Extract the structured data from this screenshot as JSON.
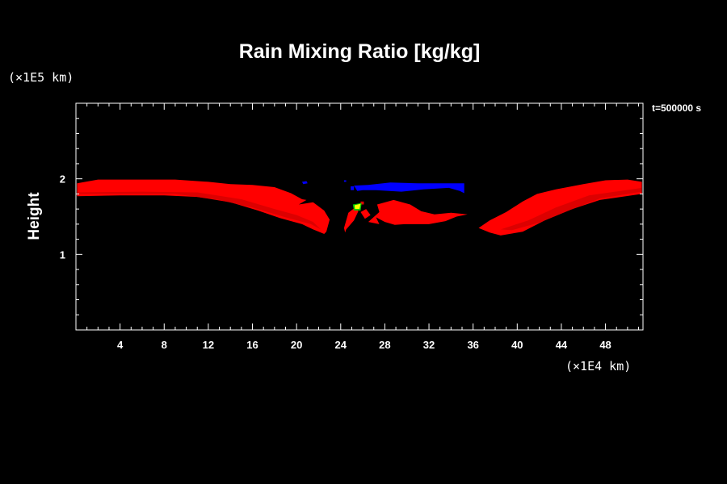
{
  "chart_data": {
    "type": "heatmap",
    "title": "Rain Mixing Ratio [kg/kg]",
    "xlabel": "",
    "ylabel": "Height",
    "x_unit": "(×1E4 km)",
    "y_unit": "(×1E5 km)",
    "time_label": "t=500000 s",
    "xlim": [
      0,
      51.4
    ],
    "ylim": [
      0,
      3.0
    ],
    "x_ticks": [
      4,
      8,
      12,
      16,
      20,
      24,
      28,
      32,
      36,
      40,
      44,
      48
    ],
    "y_ticks": [
      1,
      2
    ],
    "grid": false,
    "colors": {
      "background": "#000000",
      "axes": "#ffffff",
      "red": "#ff0000",
      "dark_red": "#dc0000",
      "blue": "#0000ff",
      "yellow": "#ffff00",
      "green": "#00c800"
    },
    "regions": [
      {
        "color": "red",
        "polygon": [
          [
            0.1,
            1.77
          ],
          [
            0.1,
            1.94
          ],
          [
            2,
            1.99
          ],
          [
            6,
            1.99
          ],
          [
            9,
            1.99
          ],
          [
            12,
            1.96
          ],
          [
            14,
            1.93
          ],
          [
            16,
            1.92
          ],
          [
            18,
            1.89
          ],
          [
            19.5,
            1.81
          ],
          [
            20.5,
            1.73
          ],
          [
            20.9,
            1.72
          ],
          [
            20.2,
            1.66
          ],
          [
            21.5,
            1.69
          ],
          [
            22.5,
            1.58
          ],
          [
            23,
            1.46
          ],
          [
            22.7,
            1.3
          ],
          [
            22.5,
            1.27
          ],
          [
            21.5,
            1.33
          ],
          [
            20.5,
            1.4
          ],
          [
            18.5,
            1.48
          ],
          [
            16.5,
            1.58
          ],
          [
            14,
            1.69
          ],
          [
            11,
            1.76
          ],
          [
            8,
            1.78
          ],
          [
            4,
            1.78
          ]
        ]
      },
      {
        "color": "red",
        "polygon": [
          [
            24.7,
            1.55
          ],
          [
            25.3,
            1.62
          ],
          [
            25.6,
            1.57
          ],
          [
            25.2,
            1.45
          ],
          [
            24.5,
            1.33
          ],
          [
            24.4,
            1.29
          ],
          [
            24.3,
            1.35
          ]
        ]
      },
      {
        "color": "red",
        "polygon": [
          [
            25.8,
            1.56
          ],
          [
            26.2,
            1.47
          ],
          [
            26.7,
            1.52
          ],
          [
            26.3,
            1.6
          ]
        ]
      },
      {
        "color": "red",
        "polygon": [
          [
            27.3,
            1.66
          ],
          [
            28.8,
            1.72
          ],
          [
            30.3,
            1.66
          ],
          [
            31.3,
            1.57
          ],
          [
            32.5,
            1.53
          ],
          [
            34,
            1.55
          ],
          [
            35.5,
            1.53
          ],
          [
            34.5,
            1.5
          ],
          [
            33.5,
            1.44
          ],
          [
            32,
            1.4
          ],
          [
            29.8,
            1.4
          ],
          [
            28.9,
            1.39
          ],
          [
            28,
            1.43
          ],
          [
            27.2,
            1.49
          ],
          [
            27.5,
            1.4
          ],
          [
            26.5,
            1.43
          ],
          [
            27.5,
            1.56
          ]
        ]
      },
      {
        "color": "red",
        "polygon": [
          [
            37.5,
            1.29
          ],
          [
            38.5,
            1.25
          ],
          [
            40.5,
            1.3
          ],
          [
            42.5,
            1.45
          ],
          [
            45,
            1.6
          ],
          [
            47.5,
            1.72
          ],
          [
            51.3,
            1.8
          ],
          [
            51.3,
            1.96
          ],
          [
            50,
            1.99
          ],
          [
            48,
            1.98
          ],
          [
            46,
            1.93
          ],
          [
            43.5,
            1.86
          ],
          [
            41.8,
            1.8
          ],
          [
            40.5,
            1.7
          ],
          [
            39,
            1.56
          ],
          [
            37.5,
            1.45
          ],
          [
            36.5,
            1.35
          ]
        ]
      },
      {
        "color": "dark_red",
        "polygon": [
          [
            0.1,
            1.82
          ],
          [
            6,
            1.83
          ],
          [
            11,
            1.82
          ],
          [
            15,
            1.73
          ],
          [
            18,
            1.6
          ],
          [
            20,
            1.52
          ],
          [
            21.5,
            1.43
          ],
          [
            22.2,
            1.33
          ],
          [
            21.3,
            1.4
          ],
          [
            19,
            1.49
          ],
          [
            16,
            1.62
          ],
          [
            13,
            1.72
          ],
          [
            9,
            1.8
          ],
          [
            0.1,
            1.8
          ]
        ]
      },
      {
        "color": "dark_red",
        "polygon": [
          [
            38.5,
            1.33
          ],
          [
            41,
            1.45
          ],
          [
            43.5,
            1.62
          ],
          [
            46.5,
            1.78
          ],
          [
            51.3,
            1.88
          ],
          [
            51.3,
            1.83
          ],
          [
            47.5,
            1.74
          ],
          [
            44.5,
            1.57
          ],
          [
            42,
            1.42
          ],
          [
            39.5,
            1.32
          ]
        ]
      },
      {
        "color": "blue",
        "polygon": [
          [
            25.2,
            1.91
          ],
          [
            26.5,
            1.92
          ],
          [
            28.5,
            1.95
          ],
          [
            31,
            1.94
          ],
          [
            33.5,
            1.94
          ],
          [
            35.2,
            1.94
          ],
          [
            35.2,
            1.81
          ],
          [
            34.8,
            1.84
          ],
          [
            33.8,
            1.88
          ],
          [
            31.5,
            1.86
          ],
          [
            29.5,
            1.83
          ],
          [
            27.2,
            1.85
          ],
          [
            26,
            1.85
          ],
          [
            25.5,
            1.84
          ]
        ]
      },
      {
        "color": "blue",
        "polygon": [
          [
            20.5,
            1.96
          ],
          [
            20.9,
            1.97
          ],
          [
            21,
            1.94
          ],
          [
            20.6,
            1.93
          ]
        ]
      },
      {
        "color": "blue",
        "polygon": [
          [
            24.3,
            1.98
          ],
          [
            24.5,
            1.98
          ],
          [
            24.5,
            1.96
          ],
          [
            24.3,
            1.96
          ]
        ]
      },
      {
        "color": "blue",
        "polygon": [
          [
            24.9,
            1.9
          ],
          [
            25.2,
            1.9
          ],
          [
            25.2,
            1.85
          ],
          [
            24.9,
            1.85
          ]
        ]
      },
      {
        "color": "dark_red",
        "polygon": [
          [
            25.8,
            1.7
          ],
          [
            26.1,
            1.7
          ],
          [
            26.1,
            1.66
          ],
          [
            25.8,
            1.66
          ]
        ]
      },
      {
        "color": "green",
        "polygon": [
          [
            25.1,
            1.66
          ],
          [
            25.9,
            1.68
          ],
          [
            25.8,
            1.58
          ],
          [
            25.2,
            1.58
          ]
        ]
      },
      {
        "color": "yellow",
        "polygon": [
          [
            25.25,
            1.65
          ],
          [
            25.8,
            1.67
          ],
          [
            25.7,
            1.6
          ],
          [
            25.3,
            1.6
          ]
        ]
      }
    ]
  }
}
